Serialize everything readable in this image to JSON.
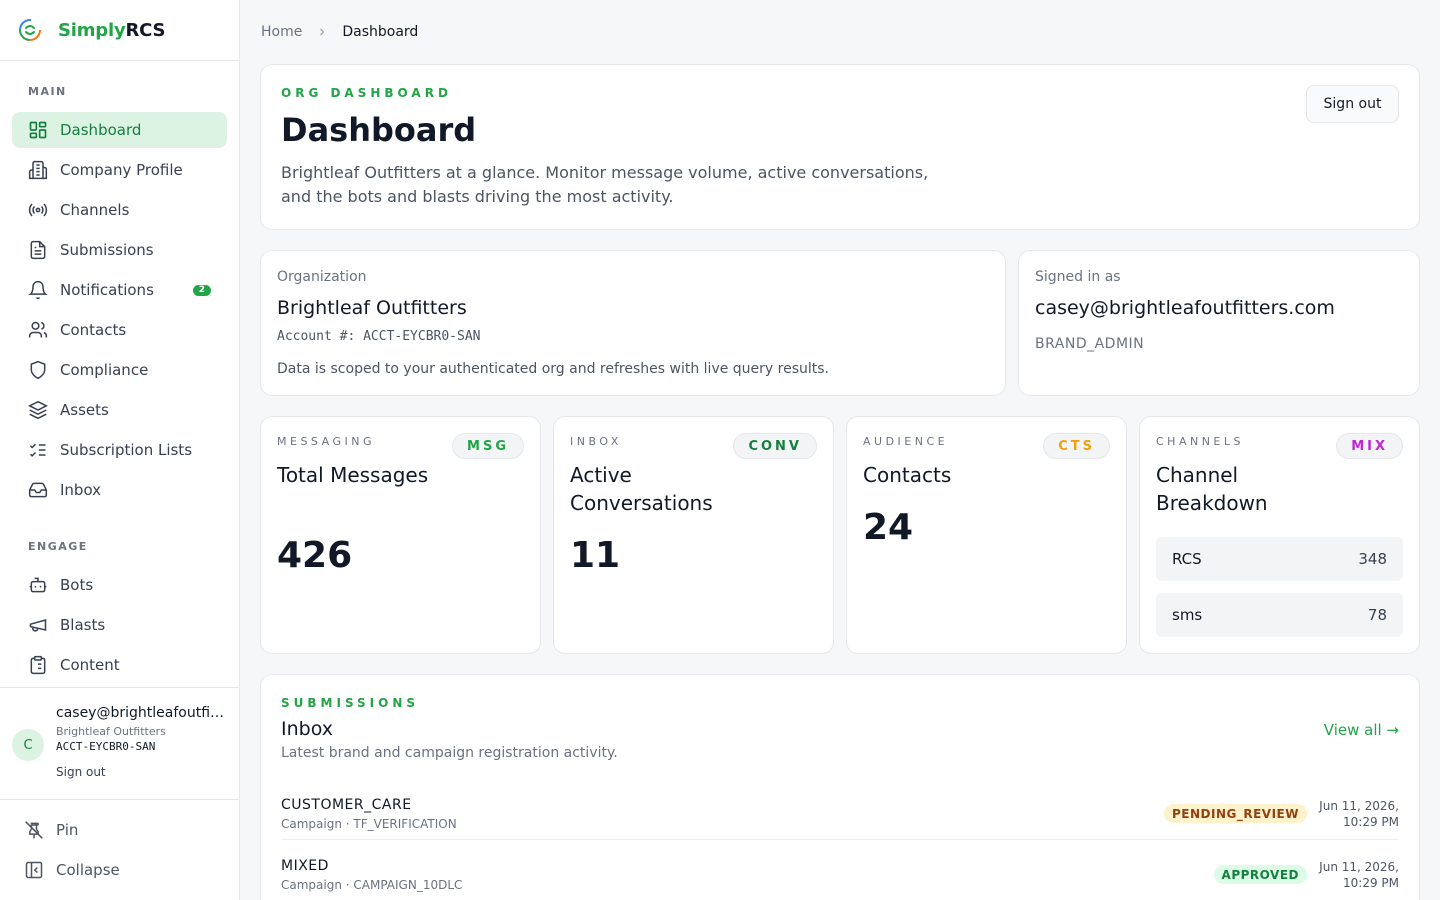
{
  "brand": {
    "simply": "Simply",
    "rcs": "RCS"
  },
  "sidebar": {
    "main_heading": "MAIN",
    "engage_heading": "ENGAGE",
    "main_items": [
      {
        "label": "Dashboard",
        "icon": "dashboard-icon",
        "active": true
      },
      {
        "label": "Company Profile",
        "icon": "building-icon"
      },
      {
        "label": "Channels",
        "icon": "broadcast-icon"
      },
      {
        "label": "Submissions",
        "icon": "file-text-icon"
      },
      {
        "label": "Notifications",
        "icon": "bell-icon",
        "badge": "2"
      },
      {
        "label": "Contacts",
        "icon": "users-icon"
      },
      {
        "label": "Compliance",
        "icon": "shield-icon"
      },
      {
        "label": "Assets",
        "icon": "layers-icon"
      },
      {
        "label": "Subscription Lists",
        "icon": "list-checks-icon"
      },
      {
        "label": "Inbox",
        "icon": "inbox-icon"
      }
    ],
    "engage_items": [
      {
        "label": "Bots",
        "icon": "bot-icon"
      },
      {
        "label": "Blasts",
        "icon": "megaphone-icon"
      },
      {
        "label": "Content",
        "icon": "clipboard-icon"
      }
    ],
    "user": {
      "initial": "C",
      "email": "casey@brightleafoutfitters.com",
      "org": "Brightleaf Outfitters",
      "account": "ACCT-EYCBR0-SAN",
      "signout": "Sign out"
    },
    "footer": {
      "pin": "Pin",
      "collapse": "Collapse"
    }
  },
  "breadcrumb": {
    "home": "Home",
    "current": "Dashboard"
  },
  "header": {
    "eyebrow": "ORG DASHBOARD",
    "title": "Dashboard",
    "description": "Brightleaf Outfitters at a glance. Monitor message volume, active conversations, and the bots and blasts driving the most activity.",
    "signout": "Sign out"
  },
  "org": {
    "label": "Organization",
    "name": "Brightleaf Outfitters",
    "account": "Account #: ACCT-EYCBR0-SAN",
    "note": "Data is scoped to your authenticated org and refreshes with live query results."
  },
  "signed_in": {
    "label": "Signed in as",
    "email": "casey@brightleafoutfitters.com",
    "role": "BRAND_ADMIN"
  },
  "stats": [
    {
      "eyebrow": "MESSAGING",
      "pill": "MSG",
      "title": "Total Messages",
      "value": "426",
      "pill_color": "#22a447"
    },
    {
      "eyebrow": "INBOX",
      "pill": "CONV",
      "title": "Active Conversations",
      "value": "11",
      "pill_color": "#15803d"
    },
    {
      "eyebrow": "AUDIENCE",
      "pill": "CTS",
      "title": "Contacts",
      "value": "24",
      "pill_color": "#f59e0b"
    },
    {
      "eyebrow": "CHANNELS",
      "pill": "MIX",
      "title": "Channel Breakdown",
      "pill_color": "#c026d3",
      "channels": [
        {
          "name": "RCS",
          "count": "348"
        },
        {
          "name": "sms",
          "count": "78"
        }
      ]
    }
  ],
  "submissions": {
    "eyebrow": "SUBMISSIONS",
    "title": "Inbox",
    "description": "Latest brand and campaign registration activity.",
    "view_all": "View all →",
    "rows": [
      {
        "name": "CUSTOMER_CARE",
        "meta": "Campaign · TF_VERIFICATION",
        "status": "PENDING_REVIEW",
        "date1": "Jun 11, 2026,",
        "date2": "10:29 PM"
      },
      {
        "name": "MIXED",
        "meta": "Campaign · CAMPAIGN_10DLC",
        "status": "APPROVED",
        "date1": "Jun 11, 2026,",
        "date2": "10:29 PM"
      }
    ]
  },
  "colors": {
    "accent": "#22a447",
    "active_bg": "#dcf3e4"
  }
}
